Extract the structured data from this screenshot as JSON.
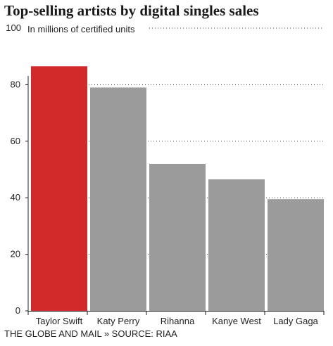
{
  "chart_data": {
    "type": "bar",
    "title": "Top-selling artists by digital singles sales",
    "subtitle": "In millions of certified units",
    "xlabel": "",
    "ylabel": "",
    "categories": [
      "Taylor Swift",
      "Katy Perry",
      "Rihanna",
      "Kanye West",
      "Lady Gaga"
    ],
    "values": [
      86.5,
      79,
      52,
      46.5,
      39.5
    ],
    "highlight_index": 0,
    "ylim": [
      0,
      100
    ],
    "yticks": [
      0,
      20,
      40,
      60,
      80,
      100
    ],
    "grid": "dotted horizontal",
    "legend": "none",
    "colors": {
      "highlight": "#d2292a",
      "bar": "#9b9b9b",
      "grid": "#444444",
      "axis": "#222222"
    }
  },
  "footer": {
    "source": "THE GLOBE AND MAIL » SOURCE: RIAA"
  }
}
